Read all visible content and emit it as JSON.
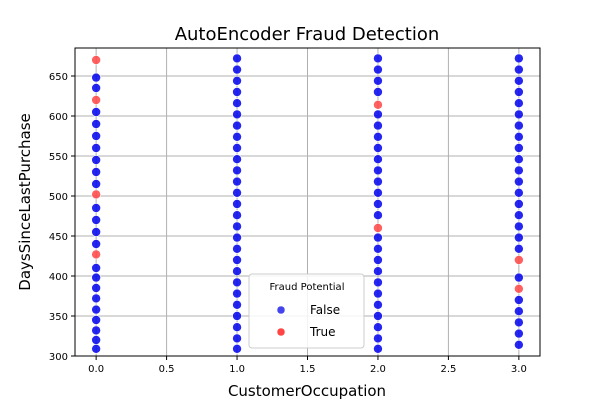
{
  "chart_data": {
    "type": "scatter",
    "title": "AutoEncoder Fraud Detection",
    "xlabel": "CustomerOccupation",
    "ylabel": "DaysSinceLastPurchase",
    "xlim": [
      -0.15,
      3.15
    ],
    "ylim": [
      300,
      685
    ],
    "xticks": [
      "0.0",
      "0.5",
      "1.0",
      "1.5",
      "2.0",
      "2.5",
      "3.0"
    ],
    "yticks": [
      "300",
      "350",
      "400",
      "450",
      "500",
      "550",
      "600",
      "650"
    ],
    "grid": true,
    "legend": {
      "title": "Fraud Potential",
      "placement": "lower center",
      "entries": [
        "False",
        "True"
      ]
    },
    "series": [
      {
        "name": "False",
        "color": "#0000ee",
        "points": [
          {
            "x": 0,
            "y": 309
          },
          {
            "x": 0,
            "y": 320
          },
          {
            "x": 0,
            "y": 332
          },
          {
            "x": 0,
            "y": 345
          },
          {
            "x": 0,
            "y": 358
          },
          {
            "x": 0,
            "y": 372
          },
          {
            "x": 0,
            "y": 385
          },
          {
            "x": 0,
            "y": 398
          },
          {
            "x": 0,
            "y": 410
          },
          {
            "x": 0,
            "y": 440
          },
          {
            "x": 0,
            "y": 455
          },
          {
            "x": 0,
            "y": 470
          },
          {
            "x": 0,
            "y": 485
          },
          {
            "x": 0,
            "y": 515
          },
          {
            "x": 0,
            "y": 530
          },
          {
            "x": 0,
            "y": 545
          },
          {
            "x": 0,
            "y": 560
          },
          {
            "x": 0,
            "y": 575
          },
          {
            "x": 0,
            "y": 590
          },
          {
            "x": 0,
            "y": 605
          },
          {
            "x": 0,
            "y": 635
          },
          {
            "x": 0,
            "y": 648
          },
          {
            "x": 1,
            "y": 309
          },
          {
            "x": 1,
            "y": 322
          },
          {
            "x": 1,
            "y": 336
          },
          {
            "x": 1,
            "y": 350
          },
          {
            "x": 1,
            "y": 364
          },
          {
            "x": 1,
            "y": 378
          },
          {
            "x": 1,
            "y": 392
          },
          {
            "x": 1,
            "y": 406
          },
          {
            "x": 1,
            "y": 420
          },
          {
            "x": 1,
            "y": 434
          },
          {
            "x": 1,
            "y": 448
          },
          {
            "x": 1,
            "y": 462
          },
          {
            "x": 1,
            "y": 476
          },
          {
            "x": 1,
            "y": 490
          },
          {
            "x": 1,
            "y": 504
          },
          {
            "x": 1,
            "y": 518
          },
          {
            "x": 1,
            "y": 532
          },
          {
            "x": 1,
            "y": 546
          },
          {
            "x": 1,
            "y": 560
          },
          {
            "x": 1,
            "y": 574
          },
          {
            "x": 1,
            "y": 588
          },
          {
            "x": 1,
            "y": 602
          },
          {
            "x": 1,
            "y": 616
          },
          {
            "x": 1,
            "y": 630
          },
          {
            "x": 1,
            "y": 644
          },
          {
            "x": 1,
            "y": 658
          },
          {
            "x": 1,
            "y": 672
          },
          {
            "x": 2,
            "y": 309
          },
          {
            "x": 2,
            "y": 322
          },
          {
            "x": 2,
            "y": 336
          },
          {
            "x": 2,
            "y": 350
          },
          {
            "x": 2,
            "y": 364
          },
          {
            "x": 2,
            "y": 378
          },
          {
            "x": 2,
            "y": 392
          },
          {
            "x": 2,
            "y": 406
          },
          {
            "x": 2,
            "y": 420
          },
          {
            "x": 2,
            "y": 434
          },
          {
            "x": 2,
            "y": 448
          },
          {
            "x": 2,
            "y": 476
          },
          {
            "x": 2,
            "y": 490
          },
          {
            "x": 2,
            "y": 504
          },
          {
            "x": 2,
            "y": 518
          },
          {
            "x": 2,
            "y": 532
          },
          {
            "x": 2,
            "y": 546
          },
          {
            "x": 2,
            "y": 560
          },
          {
            "x": 2,
            "y": 574
          },
          {
            "x": 2,
            "y": 588
          },
          {
            "x": 2,
            "y": 602
          },
          {
            "x": 2,
            "y": 630
          },
          {
            "x": 2,
            "y": 644
          },
          {
            "x": 2,
            "y": 658
          },
          {
            "x": 2,
            "y": 672
          },
          {
            "x": 3,
            "y": 314
          },
          {
            "x": 3,
            "y": 328
          },
          {
            "x": 3,
            "y": 342
          },
          {
            "x": 3,
            "y": 356
          },
          {
            "x": 3,
            "y": 370
          },
          {
            "x": 3,
            "y": 398
          },
          {
            "x": 3,
            "y": 434
          },
          {
            "x": 3,
            "y": 448
          },
          {
            "x": 3,
            "y": 462
          },
          {
            "x": 3,
            "y": 476
          },
          {
            "x": 3,
            "y": 490
          },
          {
            "x": 3,
            "y": 504
          },
          {
            "x": 3,
            "y": 518
          },
          {
            "x": 3,
            "y": 532
          },
          {
            "x": 3,
            "y": 546
          },
          {
            "x": 3,
            "y": 560
          },
          {
            "x": 3,
            "y": 574
          },
          {
            "x": 3,
            "y": 588
          },
          {
            "x": 3,
            "y": 602
          },
          {
            "x": 3,
            "y": 616
          },
          {
            "x": 3,
            "y": 630
          },
          {
            "x": 3,
            "y": 644
          },
          {
            "x": 3,
            "y": 658
          },
          {
            "x": 3,
            "y": 672
          }
        ]
      },
      {
        "name": "True",
        "color": "#ff4444",
        "points": [
          {
            "x": 0,
            "y": 670
          },
          {
            "x": 0,
            "y": 620
          },
          {
            "x": 0,
            "y": 502
          },
          {
            "x": 0,
            "y": 427
          },
          {
            "x": 2,
            "y": 614
          },
          {
            "x": 2,
            "y": 460
          },
          {
            "x": 3,
            "y": 420
          },
          {
            "x": 3,
            "y": 384
          }
        ]
      }
    ]
  }
}
